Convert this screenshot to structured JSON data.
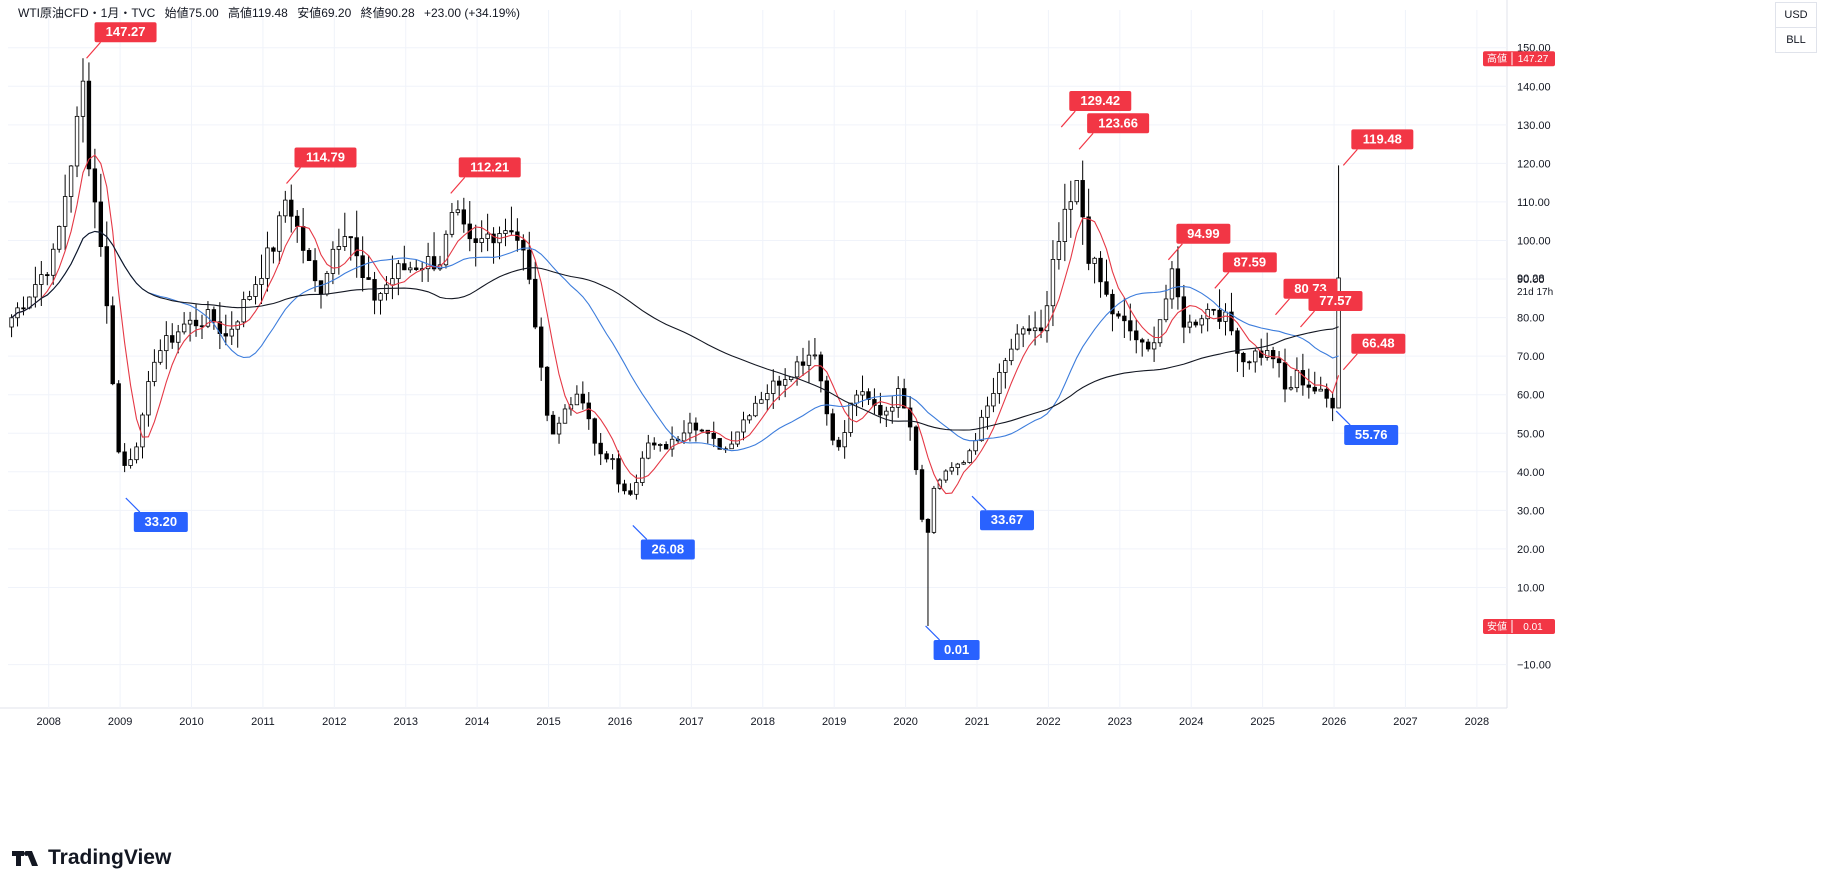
{
  "header": {
    "symbol": "WTI原油CFD・1月・TVC",
    "open": "始値75.00",
    "high": "高値119.48",
    "low": "安値69.20",
    "close": "終値90.28",
    "change": "+23.00 (+34.19%)"
  },
  "unit_buttons": {
    "currency": "USD",
    "unit": "BLL"
  },
  "footer": {
    "brand": "TradingView"
  },
  "colors": {
    "up": "#ffffff",
    "down": "#000000",
    "high_label": "#f23645",
    "low_label": "#2962ff",
    "ma_short": "#e53946",
    "ma_mid": "#3d7ddc",
    "ma_long": "#131722",
    "grid": "#f0f3fa"
  },
  "chart_data": {
    "type": "candlestick",
    "title": "WTI原油CFD",
    "interval": "1月",
    "ylim": [
      -14,
      152
    ],
    "y_ticks": [
      -10,
      10,
      20,
      30,
      40,
      50,
      60,
      70,
      80,
      90,
      100,
      110,
      120,
      130,
      140,
      150
    ],
    "y_tick_labels": [
      "−10.00",
      "10.00",
      "20.00",
      "30.00",
      "40.00",
      "50.00",
      "60.00",
      "70.00",
      "80.00",
      "90.00",
      "100.00",
      "110.00",
      "120.00",
      "130.00",
      "140.00",
      "150.00"
    ],
    "x_labels": [
      "2008",
      "2009",
      "2010",
      "2011",
      "2012",
      "2013",
      "2014",
      "2015",
      "2016",
      "2017",
      "2018",
      "2019",
      "2020",
      "2021",
      "2022",
      "2023",
      "2024",
      "2025",
      "2026",
      "2027",
      "2028"
    ],
    "x_range": [
      2007.45,
      2028.4
    ],
    "price_labels": [
      {
        "label": "高値",
        "value": "147.27",
        "y": 147.27,
        "kind": "high"
      },
      {
        "label": "",
        "value": "90.28",
        "y": 90.28,
        "sub": "21d 17h",
        "kind": "last"
      },
      {
        "label": "安値",
        "value": "0.01",
        "y": 0.01,
        "kind": "low"
      }
    ],
    "annotations": [
      {
        "text": "147.27",
        "x": 2008.55,
        "y": 147.27,
        "kind": "high"
      },
      {
        "text": "114.79",
        "x": 2011.35,
        "y": 114.79,
        "kind": "high"
      },
      {
        "text": "112.21",
        "x": 2013.65,
        "y": 112.21,
        "kind": "high"
      },
      {
        "text": "129.42",
        "x": 2022.2,
        "y": 129.42,
        "kind": "high"
      },
      {
        "text": "123.66",
        "x": 2022.45,
        "y": 123.66,
        "kind": "high"
      },
      {
        "text": "94.99",
        "x": 2023.7,
        "y": 94.99,
        "kind": "high"
      },
      {
        "text": "87.59",
        "x": 2024.35,
        "y": 87.59,
        "kind": "high"
      },
      {
        "text": "80.73",
        "x": 2025.2,
        "y": 80.73,
        "kind": "high"
      },
      {
        "text": "77.57",
        "x": 2025.55,
        "y": 77.57,
        "kind": "high"
      },
      {
        "text": "66.48",
        "x": 2026.15,
        "y": 66.48,
        "kind": "high"
      },
      {
        "text": "119.48",
        "x": 2026.15,
        "y": 119.48,
        "kind": "high"
      },
      {
        "text": "33.20",
        "x": 2009.1,
        "y": 33.2,
        "kind": "low"
      },
      {
        "text": "26.08",
        "x": 2016.2,
        "y": 26.08,
        "kind": "low"
      },
      {
        "text": "0.01",
        "x": 2020.3,
        "y": 0.01,
        "kind": "low"
      },
      {
        "text": "33.67",
        "x": 2020.95,
        "y": 33.67,
        "kind": "low"
      },
      {
        "text": "55.76",
        "x": 2026.05,
        "y": 55.76,
        "kind": "low"
      }
    ],
    "series": [
      {
        "name": "価格",
        "kind": "candles"
      },
      {
        "name": "MA短",
        "kind": "ma",
        "window": 6
      },
      {
        "name": "MA中",
        "kind": "ma",
        "window": 24
      },
      {
        "name": "MA長",
        "kind": "ma",
        "window": 60
      }
    ],
    "close_path": [
      [
        2007.5,
        80
      ],
      [
        2007.8,
        88
      ],
      [
        2008.1,
        96
      ],
      [
        2008.4,
        128
      ],
      [
        2008.5,
        140
      ],
      [
        2008.6,
        118
      ],
      [
        2008.75,
        100
      ],
      [
        2008.9,
        68
      ],
      [
        2009.0,
        45
      ],
      [
        2009.1,
        41
      ],
      [
        2009.3,
        50
      ],
      [
        2009.5,
        70
      ],
      [
        2009.9,
        78
      ],
      [
        2010.3,
        80
      ],
      [
        2010.5,
        75
      ],
      [
        2010.8,
        85
      ],
      [
        2011.2,
        100
      ],
      [
        2011.35,
        112
      ],
      [
        2011.6,
        97
      ],
      [
        2011.8,
        86
      ],
      [
        2012.0,
        98
      ],
      [
        2012.2,
        105
      ],
      [
        2012.4,
        90
      ],
      [
        2012.6,
        85
      ],
      [
        2012.9,
        92
      ],
      [
        2013.2,
        94
      ],
      [
        2013.5,
        95
      ],
      [
        2013.7,
        107
      ],
      [
        2013.95,
        97
      ],
      [
        2014.2,
        102
      ],
      [
        2014.5,
        104
      ],
      [
        2014.65,
        98
      ],
      [
        2014.8,
        84
      ],
      [
        2014.95,
        60
      ],
      [
        2015.1,
        49
      ],
      [
        2015.3,
        59
      ],
      [
        2015.5,
        58
      ],
      [
        2015.7,
        45
      ],
      [
        2015.9,
        44
      ],
      [
        2016.0,
        36
      ],
      [
        2016.2,
        35
      ],
      [
        2016.4,
        47
      ],
      [
        2016.6,
        46
      ],
      [
        2016.8,
        48
      ],
      [
        2017.0,
        54
      ],
      [
        2017.3,
        48
      ],
      [
        2017.5,
        46
      ],
      [
        2017.9,
        58
      ],
      [
        2018.2,
        63
      ],
      [
        2018.5,
        68
      ],
      [
        2018.75,
        72
      ],
      [
        2018.95,
        52
      ],
      [
        2019.1,
        45
      ],
      [
        2019.3,
        61
      ],
      [
        2019.5,
        58
      ],
      [
        2019.7,
        55
      ],
      [
        2019.95,
        61
      ],
      [
        2020.1,
        52
      ],
      [
        2020.3,
        20
      ],
      [
        2020.4,
        35
      ],
      [
        2020.6,
        41
      ],
      [
        2020.8,
        41
      ],
      [
        2020.95,
        47
      ],
      [
        2021.2,
        58
      ],
      [
        2021.5,
        72
      ],
      [
        2021.8,
        78
      ],
      [
        2021.95,
        75
      ],
      [
        2022.1,
        95
      ],
      [
        2022.25,
        105
      ],
      [
        2022.45,
        115
      ],
      [
        2022.55,
        98
      ],
      [
        2022.75,
        89
      ],
      [
        2022.95,
        80
      ],
      [
        2023.2,
        76
      ],
      [
        2023.4,
        70
      ],
      [
        2023.6,
        81
      ],
      [
        2023.75,
        90
      ],
      [
        2023.95,
        77
      ],
      [
        2024.15,
        81
      ],
      [
        2024.35,
        83
      ],
      [
        2024.55,
        78
      ],
      [
        2024.75,
        69
      ],
      [
        2024.95,
        71
      ],
      [
        2025.2,
        70
      ],
      [
        2025.35,
        60
      ],
      [
        2025.5,
        65
      ],
      [
        2025.7,
        62
      ],
      [
        2025.9,
        59
      ],
      [
        2026.0,
        58
      ],
      [
        2026.08,
        65
      ],
      [
        2026.15,
        90
      ]
    ]
  }
}
